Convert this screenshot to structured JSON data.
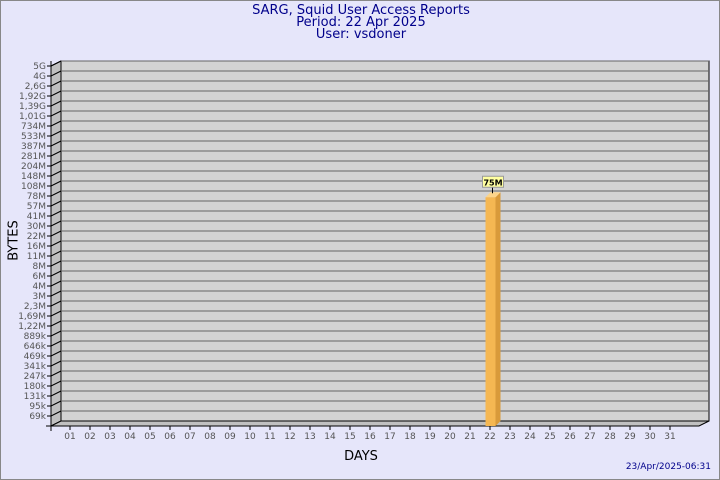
{
  "chart_data": {
    "type": "bar",
    "title": "SARG, Squid User Access Reports",
    "subtitle": [
      "Period: 22 Apr 2025",
      "User: vsdoner"
    ],
    "xlabel": "DAYS",
    "ylabel": "BYTES",
    "y_scale": "log",
    "y_ticks": [
      "5G",
      "4G",
      "2,6G",
      "1,92G",
      "1,39G",
      "1,01G",
      "734M",
      "533M",
      "387M",
      "281M",
      "204M",
      "148M",
      "108M",
      "78M",
      "57M",
      "41M",
      "30M",
      "22M",
      "16M",
      "11M",
      "8M",
      "6M",
      "4M",
      "3M",
      "2,3M",
      "1,69M",
      "1,22M",
      "889k",
      "646k",
      "469k",
      "341k",
      "247k",
      "180k",
      "131k",
      "95k",
      "69k"
    ],
    "categories": [
      "01",
      "02",
      "03",
      "04",
      "05",
      "06",
      "07",
      "08",
      "09",
      "10",
      "11",
      "12",
      "13",
      "14",
      "15",
      "16",
      "17",
      "18",
      "19",
      "20",
      "21",
      "22",
      "23",
      "24",
      "25",
      "26",
      "27",
      "28",
      "29",
      "30",
      "31"
    ],
    "bars": [
      {
        "day": "22",
        "value_bytes": 75000000,
        "label": "75M"
      }
    ],
    "grid": true,
    "colors": {
      "bar": "#f5b752",
      "bar_side": "#d99a3a",
      "wall": "#d3d3d3",
      "title": "#00008b"
    }
  },
  "footer": {
    "timestamp": "23/Apr/2025-06:31"
  }
}
